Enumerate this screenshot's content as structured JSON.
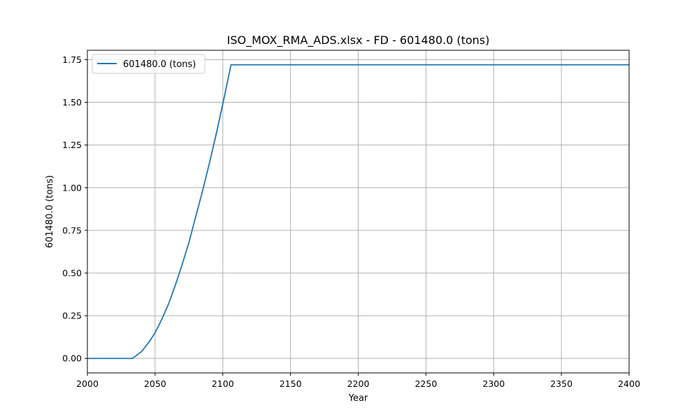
{
  "chart_data": {
    "type": "line",
    "title": "ISO_MOX_RMA_ADS.xlsx - FD - 601480.0 (tons)",
    "xlabel": "Year",
    "ylabel": "601480.0 (tons)",
    "xlim": [
      2000,
      2400
    ],
    "ylim": [
      -0.085,
      1.805
    ],
    "xticks": [
      2000,
      2050,
      2100,
      2150,
      2200,
      2250,
      2300,
      2350,
      2400
    ],
    "yticks": [
      0.0,
      0.25,
      0.5,
      0.75,
      1.0,
      1.25,
      1.5,
      1.75
    ],
    "xtick_labels": [
      "2000",
      "2050",
      "2100",
      "2150",
      "2200",
      "2250",
      "2300",
      "2350",
      "2400"
    ],
    "ytick_labels": [
      "0.00",
      "0.25",
      "0.50",
      "0.75",
      "1.00",
      "1.25",
      "1.50",
      "1.75"
    ],
    "grid": true,
    "legend_position": "top-left",
    "series": [
      {
        "name": "601480.0 (tons)",
        "color": "#1f77b4",
        "x": [
          2000,
          2033,
          2035,
          2040,
          2045,
          2050,
          2055,
          2060,
          2065,
          2070,
          2075,
          2080,
          2085,
          2090,
          2095,
          2100,
          2105,
          2106,
          2150,
          2200,
          2250,
          2300,
          2350,
          2400
        ],
        "y": [
          0.0,
          0.0,
          0.01,
          0.04,
          0.09,
          0.15,
          0.23,
          0.32,
          0.43,
          0.55,
          0.68,
          0.83,
          0.98,
          1.14,
          1.31,
          1.49,
          1.68,
          1.72,
          1.72,
          1.72,
          1.72,
          1.72,
          1.72,
          1.72
        ]
      }
    ]
  }
}
